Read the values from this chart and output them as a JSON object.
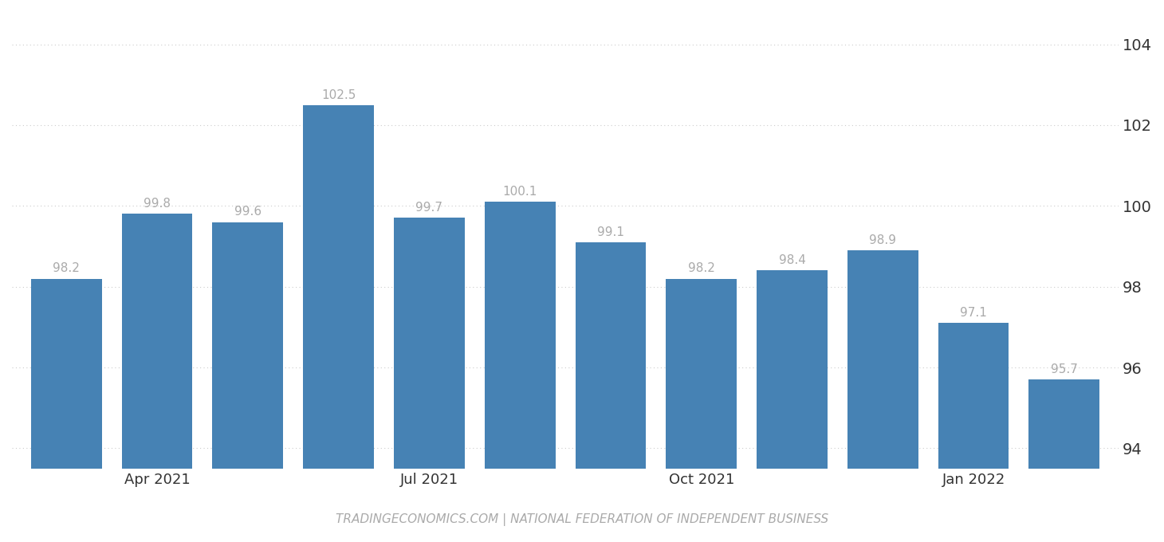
{
  "x_tick_labels": [
    "Apr 2021",
    "Jul 2021",
    "Oct 2021",
    "Jan 2022"
  ],
  "x_tick_positions": [
    1,
    4,
    7,
    10
  ],
  "values": [
    98.2,
    99.8,
    99.6,
    102.5,
    99.7,
    100.1,
    99.1,
    98.2,
    98.4,
    98.9,
    97.1,
    95.7
  ],
  "bar_color": "#4682b4",
  "background_color": "#ffffff",
  "ylim": [
    93.5,
    104.8
  ],
  "ybase": 93.5,
  "yticks": [
    94,
    96,
    98,
    100,
    102,
    104
  ],
  "grid_color": "#cccccc",
  "label_color": "#aaaaaa",
  "footer_text": "TRADINGECONOMICS.COM | NATIONAL FEDERATION OF INDEPENDENT BUSINESS",
  "footer_color": "#aaaaaa",
  "label_fontsize": 11,
  "footer_fontsize": 11,
  "tick_fontsize": 13,
  "ytick_fontsize": 14
}
